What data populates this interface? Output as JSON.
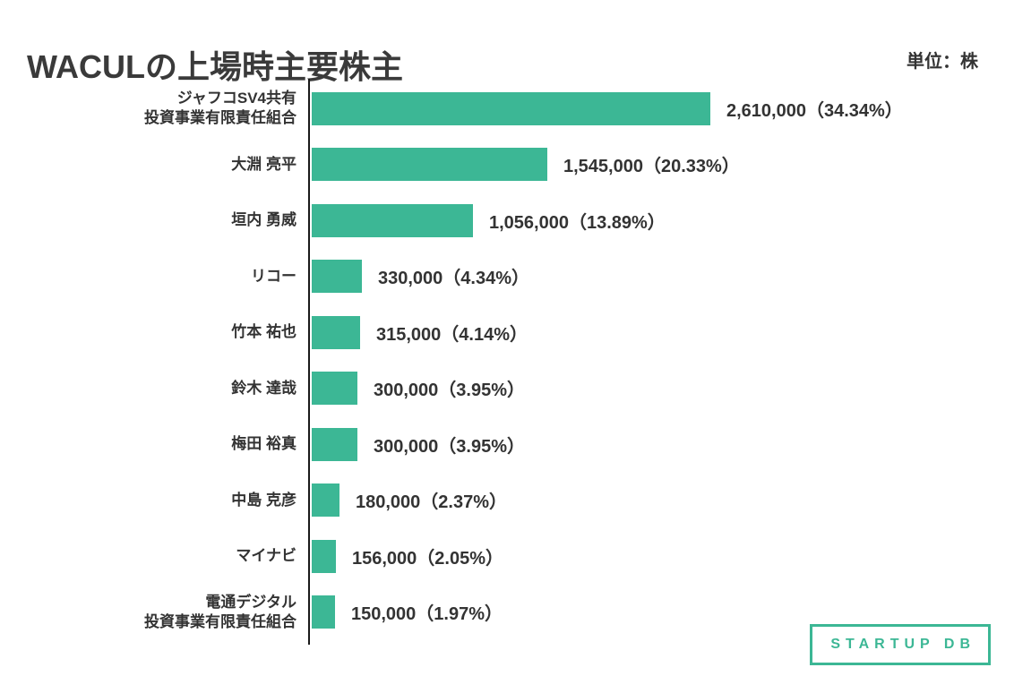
{
  "title": "WACULの上場時主要株主",
  "unit_label": "単位：株",
  "colors": {
    "accent": "#3cb795",
    "axis": "#1a1a1a",
    "text": "#333333",
    "title": "#3a3a3a"
  },
  "logo": {
    "label": "STARTUP DB"
  },
  "chart_data": {
    "type": "bar",
    "orientation": "horizontal",
    "title": "WACULの上場時主要株主",
    "unit": "株",
    "xlim": [
      0,
      2700000
    ],
    "bar_color": "#3cb795",
    "grid": false,
    "legend": "none",
    "categories": [
      "ジャフコSV4共有 投資事業有限責任組合",
      "大淵 亮平",
      "垣内 勇威",
      "リコー",
      "竹本 祐也",
      "鈴木 達哉",
      "梅田 裕真",
      "中島 克彦",
      "マイナビ",
      "電通デジタル 投資事業有限責任組合"
    ],
    "values": [
      2610000,
      1545000,
      1056000,
      330000,
      315000,
      300000,
      300000,
      180000,
      156000,
      150000
    ],
    "percentages": [
      34.34,
      20.33,
      13.89,
      4.34,
      4.14,
      3.95,
      3.95,
      2.37,
      2.05,
      1.97
    ],
    "value_labels": [
      "2,610,000（34.34%）",
      "1,545,000（20.33%）",
      "1,056,000（13.89%）",
      "330,000（4.34%）",
      "315,000（4.14%）",
      "300,000（3.95%）",
      "300,000（3.95%）",
      "180,000（2.37%）",
      "156,000（2.05%）",
      "150,000（1.97%）"
    ],
    "rows": [
      {
        "label_lines": [
          "ジャフコSV4共有",
          "投資事業有限責任組合"
        ],
        "value": 2610000,
        "value_label": "2,610,000（34.34%）"
      },
      {
        "label_lines": [
          "大淵 亮平"
        ],
        "value": 1545000,
        "value_label": "1,545,000（20.33%）"
      },
      {
        "label_lines": [
          "垣内 勇威"
        ],
        "value": 1056000,
        "value_label": "1,056,000（13.89%）"
      },
      {
        "label_lines": [
          "リコー"
        ],
        "value": 330000,
        "value_label": "330,000（4.34%）"
      },
      {
        "label_lines": [
          "竹本 祐也"
        ],
        "value": 315000,
        "value_label": "315,000（4.14%）"
      },
      {
        "label_lines": [
          "鈴木 達哉"
        ],
        "value": 300000,
        "value_label": "300,000（3.95%）"
      },
      {
        "label_lines": [
          "梅田 裕真"
        ],
        "value": 300000,
        "value_label": "300,000（3.95%）"
      },
      {
        "label_lines": [
          "中島 克彦"
        ],
        "value": 180000,
        "value_label": "180,000（2.37%）"
      },
      {
        "label_lines": [
          "マイナビ"
        ],
        "value": 156000,
        "value_label": "156,000（2.05%）"
      },
      {
        "label_lines": [
          "電通デジタル",
          "投資事業有限責任組合"
        ],
        "value": 150000,
        "value_label": "150,000（1.97%）"
      }
    ]
  }
}
